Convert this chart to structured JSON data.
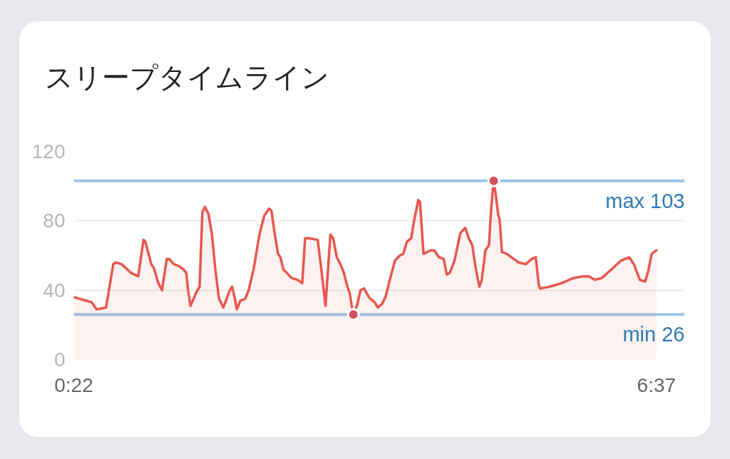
{
  "chart_data": {
    "type": "area",
    "title": "スリープタイムライン",
    "xlim": [
      0.3667,
      6.92
    ],
    "xticks": [
      {
        "value": 0.3667,
        "label": "0:22"
      },
      {
        "value": 6.6167,
        "label": "6:37"
      }
    ],
    "ylim": [
      0,
      120
    ],
    "yticks": [
      0,
      40,
      80,
      120
    ],
    "grid": "y",
    "series": [
      {
        "color": "#e8574f",
        "x": [
          0.367,
          0.433,
          0.497,
          0.56,
          0.612,
          0.713,
          0.79,
          0.816,
          0.879,
          0.981,
          1.058,
          1.114,
          1.134,
          1.198,
          1.224,
          1.275,
          1.313,
          1.364,
          1.39,
          1.44,
          1.491,
          1.543,
          1.573,
          1.593,
          1.619,
          1.683,
          1.716,
          1.746,
          1.772,
          1.811,
          1.849,
          1.887,
          1.925,
          1.971,
          2.04,
          2.065,
          2.091,
          2.116,
          2.155,
          2.205,
          2.243,
          2.295,
          2.358,
          2.41,
          2.461,
          2.486,
          2.524,
          2.557,
          2.583,
          2.614,
          2.652,
          2.703,
          2.767,
          2.817,
          2.848,
          2.894,
          2.983,
          3.022,
          3.067,
          3.119,
          3.149,
          3.188,
          3.226,
          3.264,
          3.302,
          3.328,
          3.348,
          3.366,
          3.404,
          3.442,
          3.481,
          3.532,
          3.57,
          3.595,
          3.628,
          3.672,
          3.71,
          3.761,
          3.812,
          3.863,
          3.901,
          3.94,
          3.986,
          4.016,
          4.062,
          4.08,
          4.118,
          4.194,
          4.233,
          4.284,
          4.335,
          4.368,
          4.399,
          4.45,
          4.514,
          4.565,
          4.603,
          4.641,
          4.68,
          4.718,
          4.743,
          4.782,
          4.82,
          4.845,
          4.871,
          4.891,
          4.921,
          4.934,
          4.96,
          5.011,
          5.062,
          5.139,
          5.215,
          5.279,
          5.322,
          5.355,
          5.368,
          5.47,
          5.598,
          5.725,
          5.827,
          5.891,
          5.954,
          6.031,
          6.133,
          6.235,
          6.324,
          6.375,
          6.439,
          6.495,
          6.528,
          6.566,
          6.617
        ],
        "values": [
          36,
          35,
          34,
          33,
          29,
          30,
          55,
          56,
          55,
          50,
          48,
          69,
          68,
          55,
          53,
          44,
          40,
          58,
          58,
          55,
          54,
          52,
          50,
          40,
          31,
          39,
          42,
          85,
          88,
          84,
          72,
          51,
          35,
          30,
          40,
          42,
          36,
          29,
          34,
          35,
          40,
          52,
          72,
          83,
          87,
          86,
          72,
          61,
          59,
          52,
          50,
          47,
          46,
          44,
          70,
          70,
          69,
          52,
          31,
          72,
          70,
          59,
          55,
          50,
          42,
          38,
          31,
          26,
          31,
          40,
          41,
          36,
          34,
          33,
          30,
          32,
          36,
          47,
          57,
          60,
          61,
          68,
          70,
          80,
          92,
          91,
          61,
          63,
          63,
          59,
          58,
          49,
          50,
          57,
          73,
          76,
          70,
          66,
          52,
          42,
          46,
          63,
          66,
          88,
          103,
          96,
          83,
          81,
          62,
          61,
          59,
          56,
          55,
          58,
          59,
          43,
          41,
          42,
          44,
          47,
          48,
          48,
          46,
          47,
          52,
          57,
          59,
          55,
          46,
          45,
          51,
          61,
          63
        ]
      },
      {
        "type": "scatter",
        "color": "#d5505e",
        "marker": "circle",
        "x": [
          3.366,
          4.871
        ],
        "values": [
          26,
          103
        ]
      }
    ],
    "ref_lines": [
      {
        "axis": "y",
        "value": 103,
        "label": "max 103",
        "color": "#9fc6e6"
      },
      {
        "axis": "y",
        "value": 26,
        "label": "min 26",
        "color": "#9fc6e6"
      }
    ]
  }
}
